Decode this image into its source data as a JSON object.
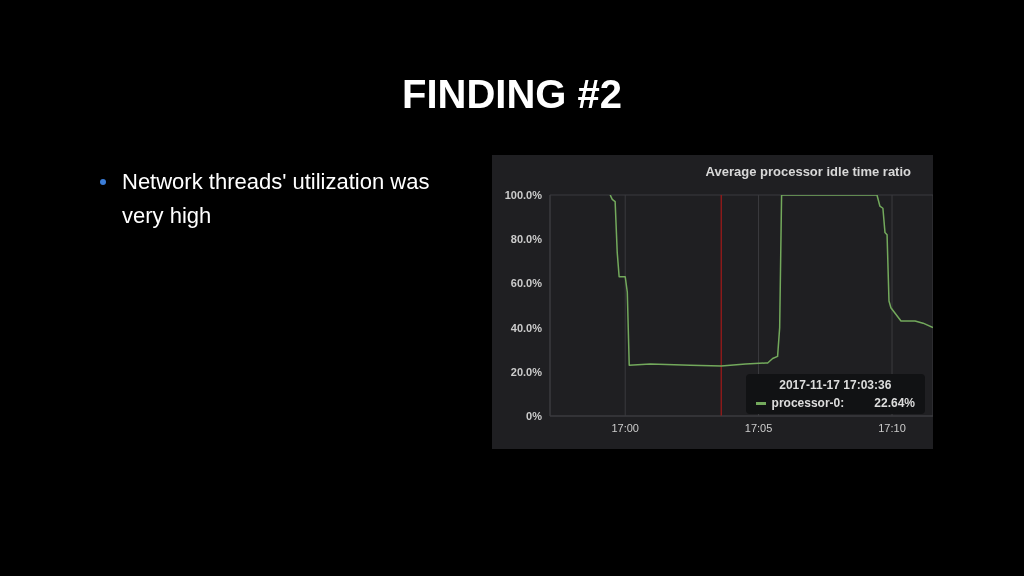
{
  "chart_data": {
    "type": "line",
    "title": "FINDING #2",
    "subtitle": "Average processor idle time ratio",
    "annotations": [
      "Network threads' utilization was very high",
      "2017-11-17 17:03:36",
      "22.64%"
    ],
    "x": [
      16.9906,
      16.9919,
      16.9937,
      16.995,
      16.9962,
      16.9975,
      17.0,
      17.0013,
      17.0025,
      17.0157,
      17.0407,
      17.06,
      17.0752,
      17.0877,
      17.089,
      17.0921,
      17.0952,
      17.0965,
      17.0977,
      17.1573,
      17.1591,
      17.161,
      17.1623,
      17.1636,
      17.1648,
      17.166,
      17.1723,
      17.1811,
      17.1861,
      17.1923
    ],
    "series": [
      {
        "name": "processor-0:",
        "color": "#73a95c",
        "values": [
          100,
          98,
          97,
          74,
          63,
          63,
          63,
          56,
          23,
          23.5,
          23,
          22.6,
          23.5,
          24,
          24,
          26,
          27,
          40,
          100,
          100,
          95,
          94,
          83,
          82,
          52,
          49,
          43,
          43,
          42,
          40
        ]
      }
    ],
    "xlim": [
      16.953,
      17.1923
    ],
    "ylim": [
      0,
      100
    ],
    "xticks": [
      {
        "value": 17,
        "label": "17:00"
      },
      {
        "value": 17.0833,
        "label": "17:05"
      },
      {
        "value": 17.1667,
        "label": "17:10"
      }
    ],
    "yticks": [
      {
        "value": 0,
        "label": "0%"
      },
      {
        "value": 20,
        "label": "20.0%"
      },
      {
        "value": 40,
        "label": "40.0%"
      },
      {
        "value": 60,
        "label": "60.0%"
      },
      {
        "value": 80,
        "label": "80.0%"
      },
      {
        "value": 100,
        "label": "100.0%"
      }
    ],
    "ref_lines": [
      {
        "axis": "x",
        "value": 17.06,
        "color": "#8b1a1a"
      }
    ],
    "grid": true,
    "legend": "bottom right",
    "marker": "none",
    "line_style": "solid"
  }
}
